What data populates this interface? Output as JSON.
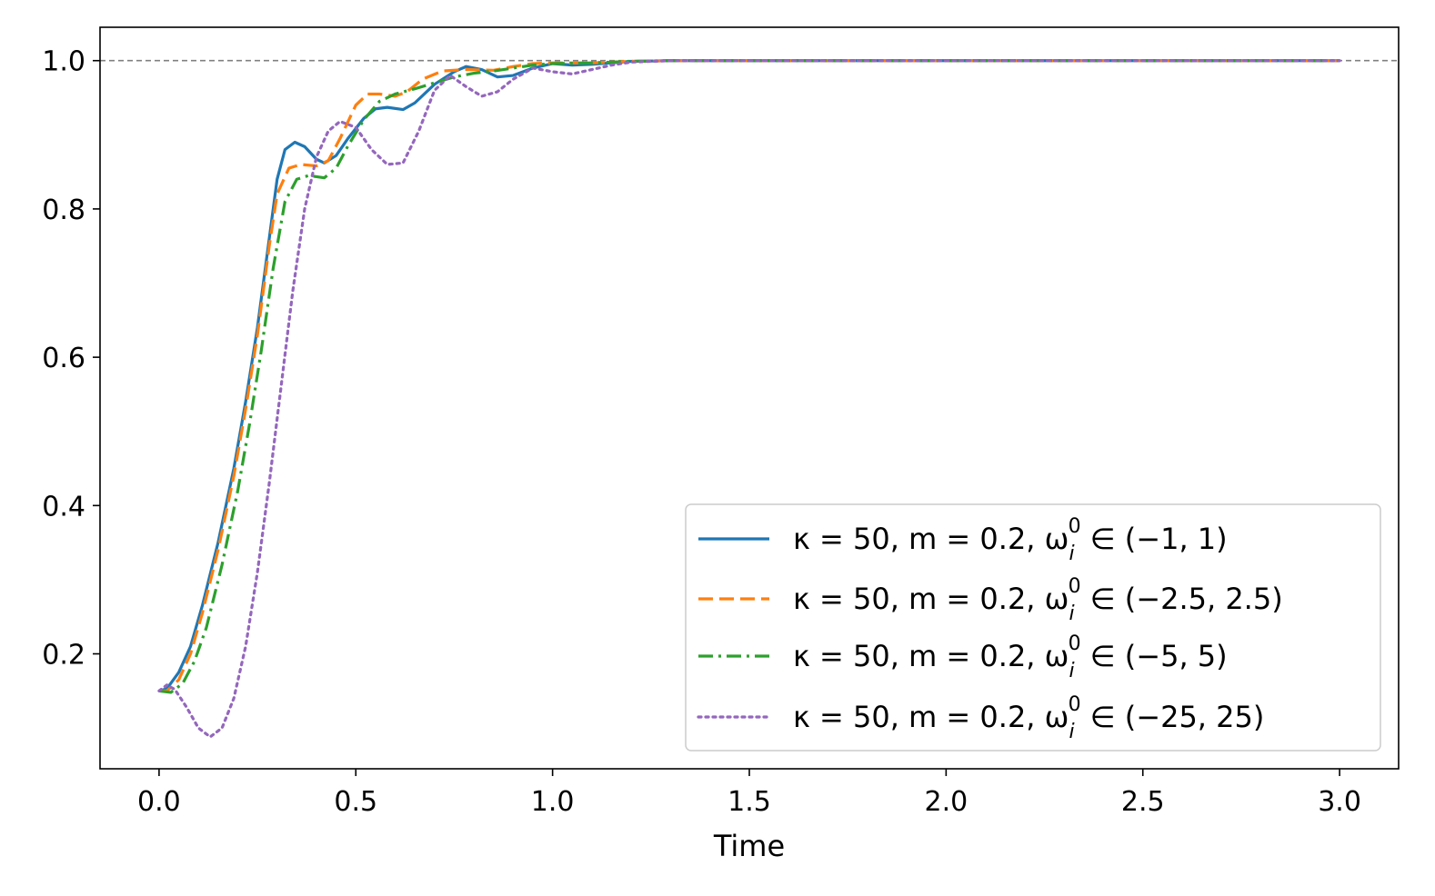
{
  "chart_data": {
    "type": "line",
    "title": "",
    "xlabel": "Time",
    "ylabel": "",
    "xlim": [
      -0.15,
      3.15
    ],
    "ylim": [
      0.045,
      1.045
    ],
    "xticks": [
      0.0,
      0.5,
      1.0,
      1.5,
      2.0,
      2.5,
      3.0
    ],
    "xtick_labels": [
      "0.0",
      "0.5",
      "1.0",
      "1.5",
      "2.0",
      "2.5",
      "3.0"
    ],
    "yticks": [
      0.2,
      0.4,
      0.6,
      0.8,
      1.0
    ],
    "ytick_labels": [
      "0.2",
      "0.4",
      "0.6",
      "0.8",
      "1.0"
    ],
    "reference_line": {
      "y": 1.0,
      "style": "dashed",
      "color": "#808080"
    },
    "legend_position": "lower-right",
    "series": [
      {
        "name": "κ = 50,  m = 0.2,  ω_i^0 ∈ (−1, 1)",
        "label_parts": [
          "κ = 50,  m = 0.2,  ω",
          "i",
          "0",
          " ∈ (−1, 1)"
        ],
        "color": "#1f77b4",
        "style": "solid",
        "points": [
          [
            0,
            0.15
          ],
          [
            0.02,
            0.153
          ],
          [
            0.05,
            0.175
          ],
          [
            0.08,
            0.21
          ],
          [
            0.11,
            0.265
          ],
          [
            0.15,
            0.35
          ],
          [
            0.19,
            0.45
          ],
          [
            0.22,
            0.54
          ],
          [
            0.25,
            0.64
          ],
          [
            0.28,
            0.76
          ],
          [
            0.3,
            0.84
          ],
          [
            0.32,
            0.88
          ],
          [
            0.345,
            0.89
          ],
          [
            0.37,
            0.884
          ],
          [
            0.4,
            0.867
          ],
          [
            0.42,
            0.862
          ],
          [
            0.45,
            0.872
          ],
          [
            0.48,
            0.895
          ],
          [
            0.52,
            0.922
          ],
          [
            0.55,
            0.935
          ],
          [
            0.58,
            0.937
          ],
          [
            0.62,
            0.934
          ],
          [
            0.65,
            0.943
          ],
          [
            0.7,
            0.968
          ],
          [
            0.75,
            0.985
          ],
          [
            0.78,
            0.992
          ],
          [
            0.82,
            0.988
          ],
          [
            0.86,
            0.978
          ],
          [
            0.9,
            0.98
          ],
          [
            0.95,
            0.99
          ],
          [
            1.0,
            0.996
          ],
          [
            1.05,
            0.994
          ],
          [
            1.1,
            0.995
          ],
          [
            1.2,
            0.999
          ],
          [
            1.3,
            1.0
          ],
          [
            1.5,
            1.0
          ],
          [
            2.0,
            1.0
          ],
          [
            3.0,
            1.0
          ]
        ]
      },
      {
        "name": "κ = 50,  m = 0.2,  ω_i^0 ∈ (−2.5, 2.5)",
        "label_parts": [
          "κ = 50,  m = 0.2,  ω",
          "i",
          "0",
          " ∈ (−2.5, 2.5)"
        ],
        "color": "#ff7f0e",
        "style": "dashed",
        "points": [
          [
            0,
            0.15
          ],
          [
            0.02,
            0.15
          ],
          [
            0.05,
            0.165
          ],
          [
            0.08,
            0.2
          ],
          [
            0.11,
            0.255
          ],
          [
            0.15,
            0.34
          ],
          [
            0.19,
            0.44
          ],
          [
            0.22,
            0.53
          ],
          [
            0.25,
            0.63
          ],
          [
            0.28,
            0.75
          ],
          [
            0.3,
            0.82
          ],
          [
            0.33,
            0.855
          ],
          [
            0.36,
            0.86
          ],
          [
            0.4,
            0.858
          ],
          [
            0.43,
            0.865
          ],
          [
            0.46,
            0.895
          ],
          [
            0.5,
            0.94
          ],
          [
            0.53,
            0.955
          ],
          [
            0.56,
            0.955
          ],
          [
            0.6,
            0.952
          ],
          [
            0.63,
            0.958
          ],
          [
            0.67,
            0.975
          ],
          [
            0.72,
            0.986
          ],
          [
            0.78,
            0.988
          ],
          [
            0.85,
            0.987
          ],
          [
            0.9,
            0.992
          ],
          [
            0.95,
            0.996
          ],
          [
            1.0,
            0.997
          ],
          [
            1.1,
            0.997
          ],
          [
            1.2,
            0.999
          ],
          [
            1.3,
            1.0
          ],
          [
            2.0,
            1.0
          ],
          [
            3.0,
            1.0
          ]
        ]
      },
      {
        "name": "κ = 50,  m = 0.2,  ω_i^0 ∈ (−5, 5)",
        "label_parts": [
          "κ = 50,  m = 0.2,  ω",
          "i",
          "0",
          " ∈ (−5, 5)"
        ],
        "color": "#2ca02c",
        "style": "dashdot",
        "points": [
          [
            0,
            0.15
          ],
          [
            0.03,
            0.148
          ],
          [
            0.06,
            0.16
          ],
          [
            0.09,
            0.19
          ],
          [
            0.12,
            0.235
          ],
          [
            0.16,
            0.32
          ],
          [
            0.2,
            0.42
          ],
          [
            0.23,
            0.51
          ],
          [
            0.26,
            0.61
          ],
          [
            0.29,
            0.72
          ],
          [
            0.32,
            0.81
          ],
          [
            0.35,
            0.84
          ],
          [
            0.38,
            0.845
          ],
          [
            0.42,
            0.842
          ],
          [
            0.45,
            0.855
          ],
          [
            0.48,
            0.885
          ],
          [
            0.52,
            0.92
          ],
          [
            0.56,
            0.945
          ],
          [
            0.6,
            0.955
          ],
          [
            0.65,
            0.962
          ],
          [
            0.7,
            0.97
          ],
          [
            0.75,
            0.978
          ],
          [
            0.8,
            0.983
          ],
          [
            0.85,
            0.986
          ],
          [
            0.9,
            0.99
          ],
          [
            0.95,
            0.994
          ],
          [
            1.0,
            0.996
          ],
          [
            1.1,
            0.997
          ],
          [
            1.2,
            0.999
          ],
          [
            1.3,
            1.0
          ],
          [
            2.0,
            1.0
          ],
          [
            3.0,
            1.0
          ]
        ]
      },
      {
        "name": "κ = 50,  m = 0.2,  ω_i^0 ∈ (−25, 25)",
        "label_parts": [
          "κ = 50,  m = 0.2,  ω",
          "i",
          "0",
          " ∈ (−25, 25)"
        ],
        "color": "#9467bd",
        "style": "dotted",
        "points": [
          [
            0,
            0.15
          ],
          [
            0.02,
            0.158
          ],
          [
            0.04,
            0.152
          ],
          [
            0.07,
            0.128
          ],
          [
            0.1,
            0.1
          ],
          [
            0.13,
            0.088
          ],
          [
            0.16,
            0.1
          ],
          [
            0.19,
            0.14
          ],
          [
            0.22,
            0.21
          ],
          [
            0.25,
            0.31
          ],
          [
            0.28,
            0.43
          ],
          [
            0.31,
            0.56
          ],
          [
            0.34,
            0.69
          ],
          [
            0.37,
            0.8
          ],
          [
            0.4,
            0.87
          ],
          [
            0.43,
            0.905
          ],
          [
            0.46,
            0.918
          ],
          [
            0.5,
            0.91
          ],
          [
            0.54,
            0.88
          ],
          [
            0.58,
            0.86
          ],
          [
            0.62,
            0.862
          ],
          [
            0.66,
            0.905
          ],
          [
            0.7,
            0.96
          ],
          [
            0.74,
            0.98
          ],
          [
            0.78,
            0.965
          ],
          [
            0.82,
            0.952
          ],
          [
            0.86,
            0.958
          ],
          [
            0.9,
            0.975
          ],
          [
            0.95,
            0.99
          ],
          [
            1.0,
            0.985
          ],
          [
            1.05,
            0.982
          ],
          [
            1.1,
            0.988
          ],
          [
            1.15,
            0.994
          ],
          [
            1.2,
            0.998
          ],
          [
            1.3,
            1.0
          ],
          [
            2.0,
            1.0
          ],
          [
            3.0,
            1.0
          ]
        ]
      }
    ]
  }
}
